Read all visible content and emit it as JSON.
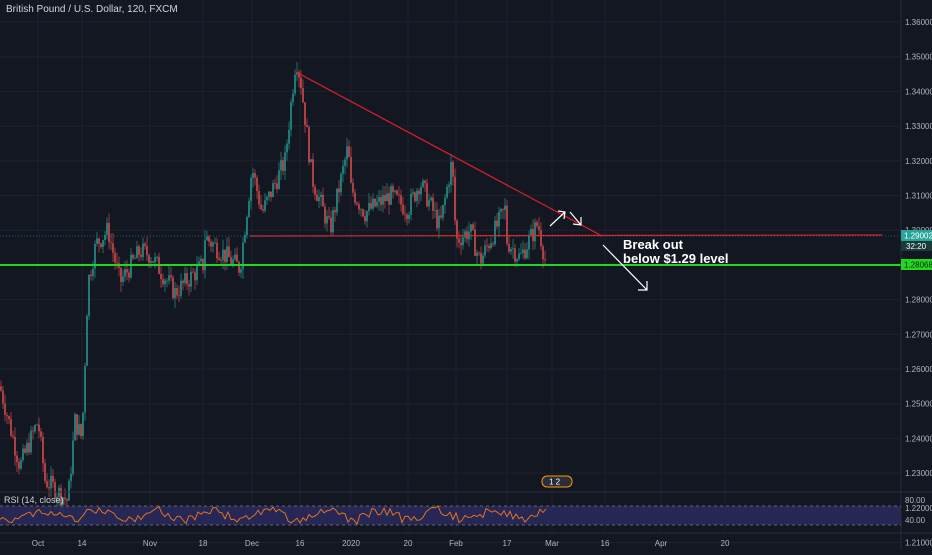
{
  "header": {
    "symbol_title": "British Pound / U.S. Dollar, 120, FXCM"
  },
  "price_axis": {
    "ticks": [
      "1.36000",
      "1.35000",
      "1.34000",
      "1.33000",
      "1.32000",
      "1.31000",
      "1.30000",
      "1.29000",
      "1.28000",
      "1.27000",
      "1.26000",
      "1.25000",
      "1.24000",
      "1.23000",
      "1.22000",
      "1.21000"
    ],
    "current_price": "1.29002",
    "countdown": "32:20",
    "support_price": "1.28068"
  },
  "time_axis": {
    "ticks": [
      "Oct",
      "14",
      "Nov",
      "18",
      "Dec",
      "16",
      "2020",
      "20",
      "Feb",
      "17",
      "Mar",
      "16",
      "Apr",
      "20"
    ]
  },
  "annotation": {
    "line1": "Break out",
    "line2": "below $1.29 level"
  },
  "rsi": {
    "title": "RSI (14, close)",
    "levels": [
      "80.00",
      "40.00"
    ]
  },
  "event_badge": "1 2",
  "colors": {
    "background": "#131722",
    "bull": "#26a69a",
    "bear": "#ef5350",
    "trendline": "#e0202a",
    "support": "#22d622",
    "rsi_line": "#f07a1a",
    "rsi_band": "#2b2a5e"
  },
  "chart_data": {
    "type": "line",
    "title": "British Pound / U.S. Dollar, 120, FXCM",
    "x": [
      "Oct",
      "14",
      "Nov",
      "18",
      "Dec",
      "16",
      "2020",
      "20",
      "Feb",
      "17",
      "Mar",
      "16",
      "Apr",
      "20"
    ],
    "ylim": [
      1.2,
      1.365
    ],
    "series": [
      {
        "name": "British Pound / U.S. Dollar",
        "points": [
          [
            "Oct",
            1.245
          ],
          [
            "14",
            1.24
          ],
          [
            "Nov",
            1.293
          ],
          [
            "18",
            1.29
          ],
          [
            "Dec",
            1.318
          ],
          [
            "16",
            1.345
          ],
          [
            "2020",
            1.312
          ],
          [
            "20",
            1.306
          ],
          [
            "Feb",
            1.297
          ],
          [
            "17",
            1.297
          ],
          [
            "Mar",
            1.29
          ]
        ]
      }
    ],
    "annotations": [
      "Break out",
      "below $1.29 level"
    ]
  }
}
